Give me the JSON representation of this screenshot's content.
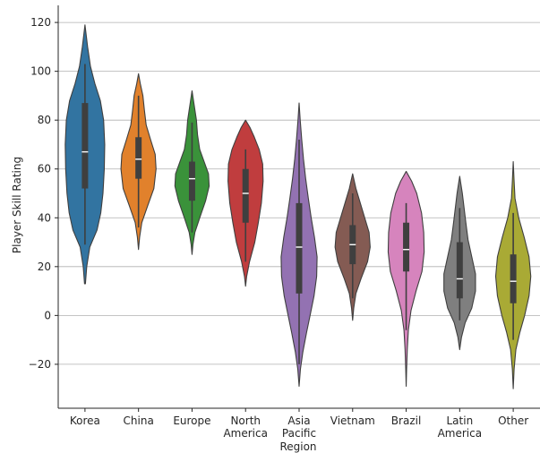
{
  "chart_data": {
    "type": "violin",
    "xlabel": "Region",
    "ylabel": "Player Skill Rating",
    "ylim": [
      -38,
      127
    ],
    "yticks": [
      -20,
      0,
      20,
      40,
      60,
      80,
      100,
      120
    ],
    "grid": "horizontal",
    "categories": [
      {
        "label": [
          "Korea"
        ],
        "color": "#3274a1",
        "min": 13,
        "max": 119,
        "q1": 52,
        "median": 67,
        "q3": 87,
        "whisker_low": 29,
        "whisker_high": 103,
        "profile": [
          [
            13,
            0.02
          ],
          [
            20,
            0.08
          ],
          [
            28,
            0.22
          ],
          [
            35,
            0.55
          ],
          [
            42,
            0.72
          ],
          [
            50,
            0.82
          ],
          [
            60,
            0.88
          ],
          [
            70,
            0.9
          ],
          [
            80,
            0.85
          ],
          [
            88,
            0.7
          ],
          [
            95,
            0.45
          ],
          [
            102,
            0.25
          ],
          [
            110,
            0.12
          ],
          [
            116,
            0.04
          ],
          [
            119,
            0.0
          ]
        ]
      },
      {
        "label": [
          "China"
        ],
        "color": "#e1812c",
        "min": 27,
        "max": 99,
        "q1": 56,
        "median": 64,
        "q3": 73,
        "whisker_low": 36,
        "whisker_high": 90,
        "profile": [
          [
            27,
            0.0
          ],
          [
            32,
            0.05
          ],
          [
            38,
            0.15
          ],
          [
            45,
            0.42
          ],
          [
            52,
            0.7
          ],
          [
            60,
            0.8
          ],
          [
            66,
            0.76
          ],
          [
            72,
            0.55
          ],
          [
            78,
            0.35
          ],
          [
            84,
            0.27
          ],
          [
            90,
            0.2
          ],
          [
            95,
            0.08
          ],
          [
            99,
            0.0
          ]
        ]
      },
      {
        "label": [
          "Europe"
        ],
        "color": "#3a923a",
        "min": 25,
        "max": 92,
        "q1": 47,
        "median": 56,
        "q3": 63,
        "whisker_low": 34,
        "whisker_high": 79,
        "profile": [
          [
            25,
            0.0
          ],
          [
            29,
            0.04
          ],
          [
            34,
            0.13
          ],
          [
            40,
            0.35
          ],
          [
            47,
            0.62
          ],
          [
            53,
            0.78
          ],
          [
            58,
            0.75
          ],
          [
            63,
            0.55
          ],
          [
            68,
            0.35
          ],
          [
            74,
            0.25
          ],
          [
            80,
            0.2
          ],
          [
            86,
            0.1
          ],
          [
            92,
            0.0
          ]
        ]
      },
      {
        "label": [
          "North",
          "America"
        ],
        "color": "#c03d3e",
        "min": 12,
        "max": 80,
        "q1": 38,
        "median": 50,
        "q3": 60,
        "whisker_low": 22,
        "whisker_high": 68,
        "profile": [
          [
            12,
            0.0
          ],
          [
            16,
            0.05
          ],
          [
            22,
            0.18
          ],
          [
            30,
            0.42
          ],
          [
            38,
            0.58
          ],
          [
            46,
            0.72
          ],
          [
            55,
            0.8
          ],
          [
            62,
            0.78
          ],
          [
            68,
            0.62
          ],
          [
            73,
            0.4
          ],
          [
            77,
            0.2
          ],
          [
            80,
            0.0
          ]
        ]
      },
      {
        "label": [
          "Asia",
          "Pacific"
        ],
        "color": "#9372b2",
        "min": -29,
        "max": 87,
        "q1": 9,
        "median": 28,
        "q3": 46,
        "whisker_low": -20,
        "whisker_high": 72,
        "profile": [
          [
            -29,
            0.0
          ],
          [
            -22,
            0.06
          ],
          [
            -15,
            0.17
          ],
          [
            -7,
            0.34
          ],
          [
            0,
            0.5
          ],
          [
            8,
            0.68
          ],
          [
            16,
            0.8
          ],
          [
            24,
            0.82
          ],
          [
            32,
            0.7
          ],
          [
            40,
            0.55
          ],
          [
            48,
            0.42
          ],
          [
            56,
            0.3
          ],
          [
            64,
            0.2
          ],
          [
            72,
            0.12
          ],
          [
            80,
            0.05
          ],
          [
            87,
            0.0
          ]
        ]
      },
      {
        "label": [
          "Vietnam"
        ],
        "color": "#845b53",
        "min": -2,
        "max": 58,
        "q1": 21,
        "median": 29,
        "q3": 37,
        "whisker_low": 7,
        "whisker_high": 50,
        "profile": [
          [
            -2,
            0.0
          ],
          [
            3,
            0.05
          ],
          [
            9,
            0.15
          ],
          [
            15,
            0.38
          ],
          [
            22,
            0.68
          ],
          [
            28,
            0.8
          ],
          [
            34,
            0.75
          ],
          [
            40,
            0.55
          ],
          [
            46,
            0.35
          ],
          [
            52,
            0.15
          ],
          [
            58,
            0.0
          ]
        ]
      },
      {
        "label": [
          "Brazil"
        ],
        "color": "#d684bd",
        "min": -29,
        "max": 59,
        "q1": 18,
        "median": 27,
        "q3": 38,
        "whisker_low": -6,
        "whisker_high": 46,
        "profile": [
          [
            -29,
            0.0
          ],
          [
            -22,
            0.02
          ],
          [
            -14,
            0.05
          ],
          [
            -6,
            0.1
          ],
          [
            2,
            0.22
          ],
          [
            10,
            0.45
          ],
          [
            18,
            0.72
          ],
          [
            26,
            0.82
          ],
          [
            34,
            0.8
          ],
          [
            42,
            0.7
          ],
          [
            50,
            0.48
          ],
          [
            55,
            0.25
          ],
          [
            59,
            0.0
          ]
        ]
      },
      {
        "label": [
          "Latin",
          "America"
        ],
        "color": "#7f7f7f",
        "min": -14,
        "max": 57,
        "q1": 7,
        "median": 15,
        "q3": 30,
        "whisker_low": -2,
        "whisker_high": 44,
        "profile": [
          [
            -14,
            0.0
          ],
          [
            -9,
            0.08
          ],
          [
            -3,
            0.25
          ],
          [
            3,
            0.55
          ],
          [
            10,
            0.72
          ],
          [
            17,
            0.72
          ],
          [
            24,
            0.55
          ],
          [
            31,
            0.38
          ],
          [
            38,
            0.28
          ],
          [
            44,
            0.2
          ],
          [
            50,
            0.12
          ],
          [
            57,
            0.0
          ]
        ]
      },
      {
        "label": [
          "Other"
        ],
        "color": "#a9aa35",
        "min": -30,
        "max": 63,
        "q1": 5,
        "median": 14,
        "q3": 25,
        "whisker_low": -10,
        "whisker_high": 42,
        "profile": [
          [
            -30,
            0.0
          ],
          [
            -22,
            0.04
          ],
          [
            -14,
            0.12
          ],
          [
            -7,
            0.3
          ],
          [
            0,
            0.52
          ],
          [
            8,
            0.72
          ],
          [
            16,
            0.8
          ],
          [
            24,
            0.72
          ],
          [
            32,
            0.5
          ],
          [
            40,
            0.25
          ],
          [
            48,
            0.08
          ],
          [
            55,
            0.04
          ],
          [
            63,
            0.0
          ]
        ]
      }
    ]
  }
}
